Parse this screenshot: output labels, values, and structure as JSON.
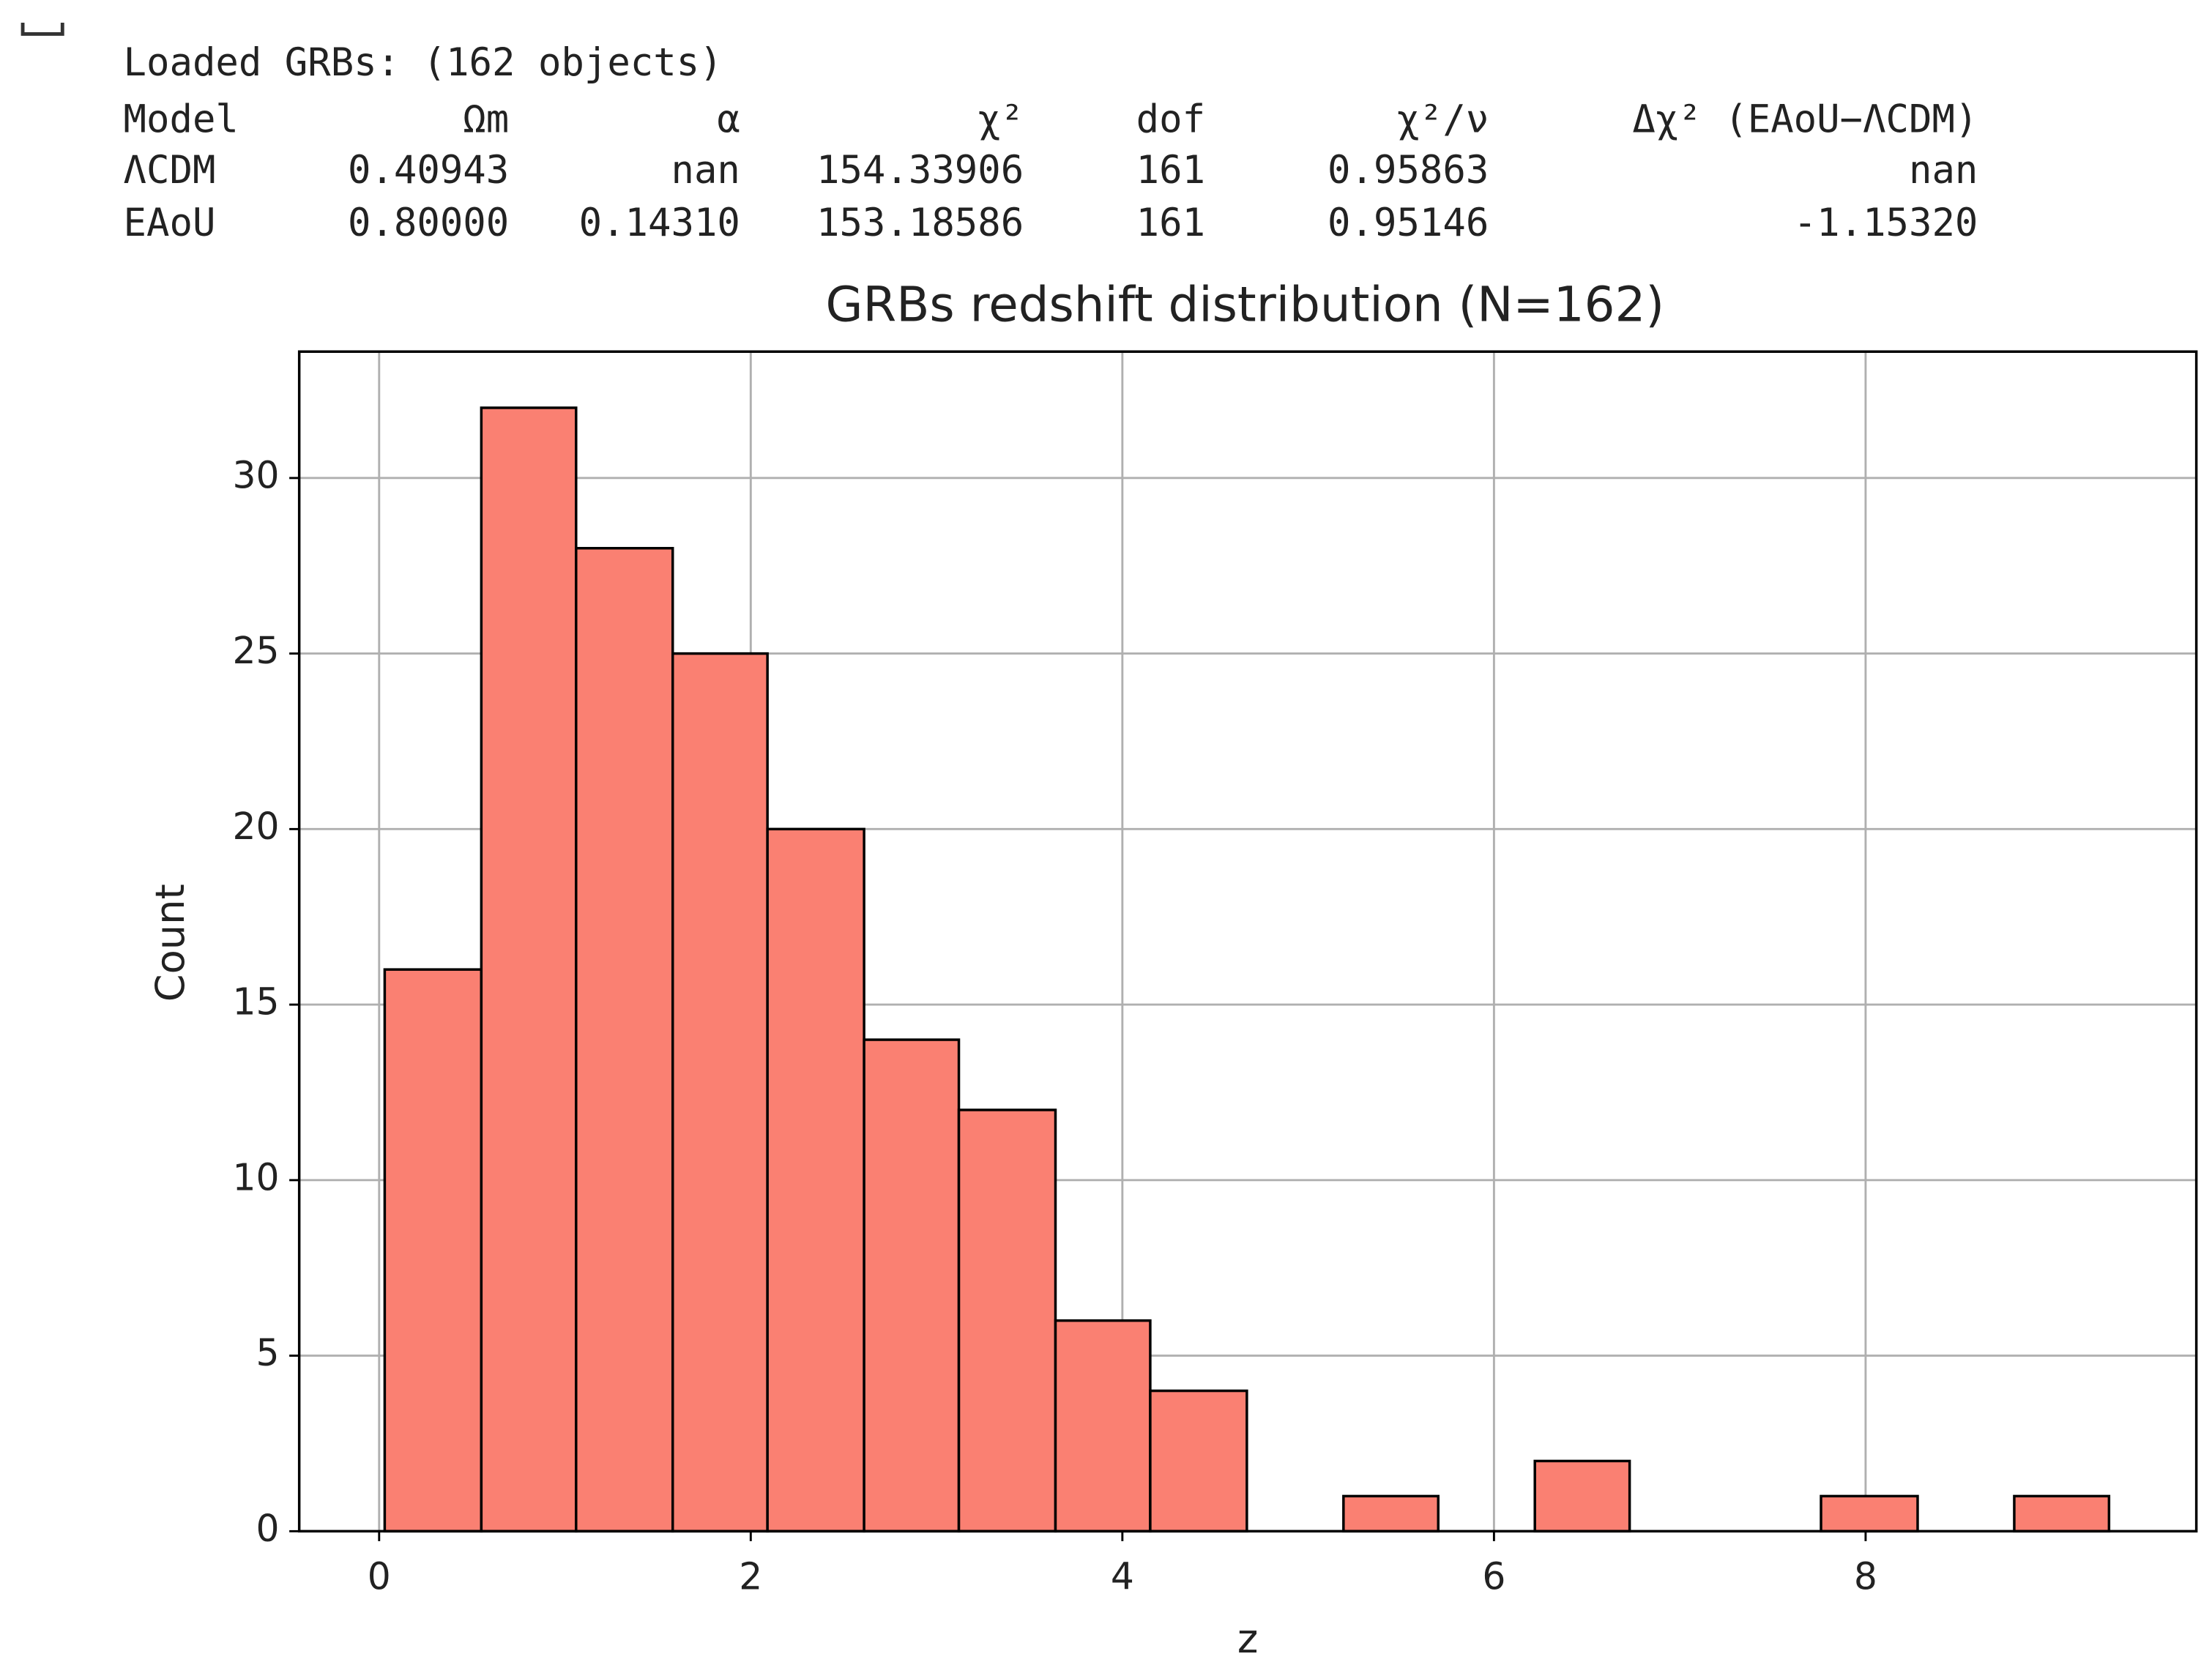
{
  "output": {
    "header": "Loaded GRBs: (162 objects)",
    "table": {
      "columns": [
        "Model",
        "Ωm",
        "α",
        "χ²",
        "dof",
        "χ²/ν",
        "Δχ² (EAoU−ΛCDM)"
      ],
      "rows": [
        [
          "ΛCDM",
          "0.40943",
          "nan",
          "154.33906",
          "161",
          "0.95863",
          "nan"
        ],
        [
          "EAoU",
          "0.80000",
          "0.14310",
          "153.18586",
          "161",
          "0.95146",
          "-1.15320"
        ]
      ]
    }
  },
  "chart_data": {
    "type": "histogram",
    "title": "GRBs redshift distribution (N=162)",
    "x_label": "z",
    "y_label": "Count",
    "bins": [
      0.03,
      0.55,
      1.06,
      1.58,
      2.09,
      2.61,
      3.12,
      3.64,
      4.15,
      4.67,
      5.19,
      5.7,
      6.22,
      6.73,
      7.25,
      7.76,
      8.28,
      8.8,
      9.31
    ],
    "values": [
      16,
      32,
      28,
      25,
      20,
      14,
      12,
      6,
      4,
      0,
      1,
      0,
      2,
      0,
      0,
      1,
      0,
      1
    ],
    "color": "#fa8072",
    "edgecolor": "#000000",
    "xlim": [
      -0.43,
      9.78
    ],
    "ylim": [
      0,
      33.6
    ],
    "xticks": [
      0,
      2,
      4,
      6,
      8
    ],
    "yticks": [
      0,
      5,
      10,
      15,
      20,
      25,
      30
    ],
    "grid": true
  }
}
